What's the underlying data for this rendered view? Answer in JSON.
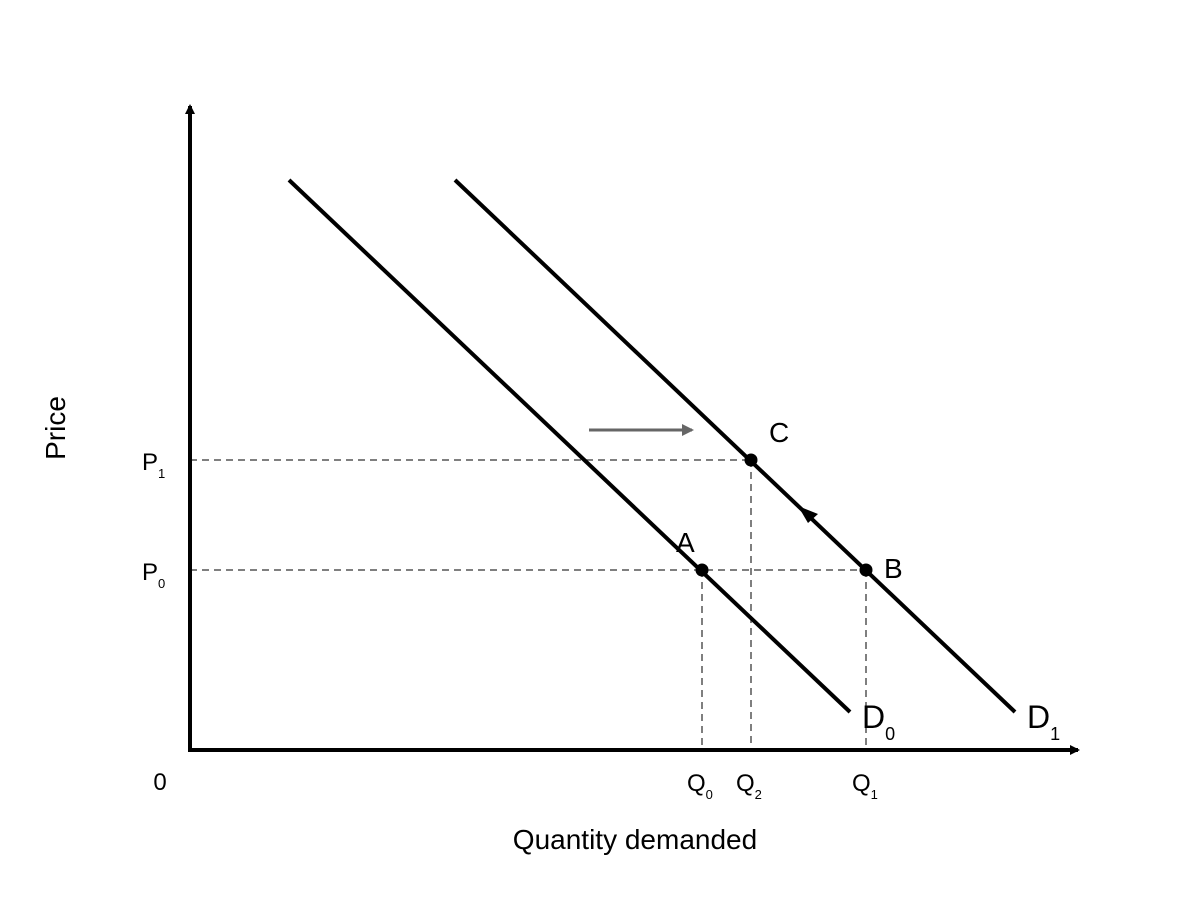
{
  "axes": {
    "y_label": "Price",
    "x_label": "Quantity demanded",
    "origin": "0"
  },
  "price_levels": [
    {
      "letter": "P",
      "subscript": "1"
    },
    {
      "letter": "P",
      "subscript": "0"
    }
  ],
  "quantities": [
    {
      "letter": "Q",
      "subscript": "0"
    },
    {
      "letter": "Q",
      "subscript": "2"
    },
    {
      "letter": "Q",
      "subscript": "1"
    }
  ],
  "points": [
    "A",
    "B",
    "C"
  ],
  "curves": [
    {
      "letter": "D",
      "subscript": "0"
    },
    {
      "letter": "D",
      "subscript": "1"
    }
  ]
}
